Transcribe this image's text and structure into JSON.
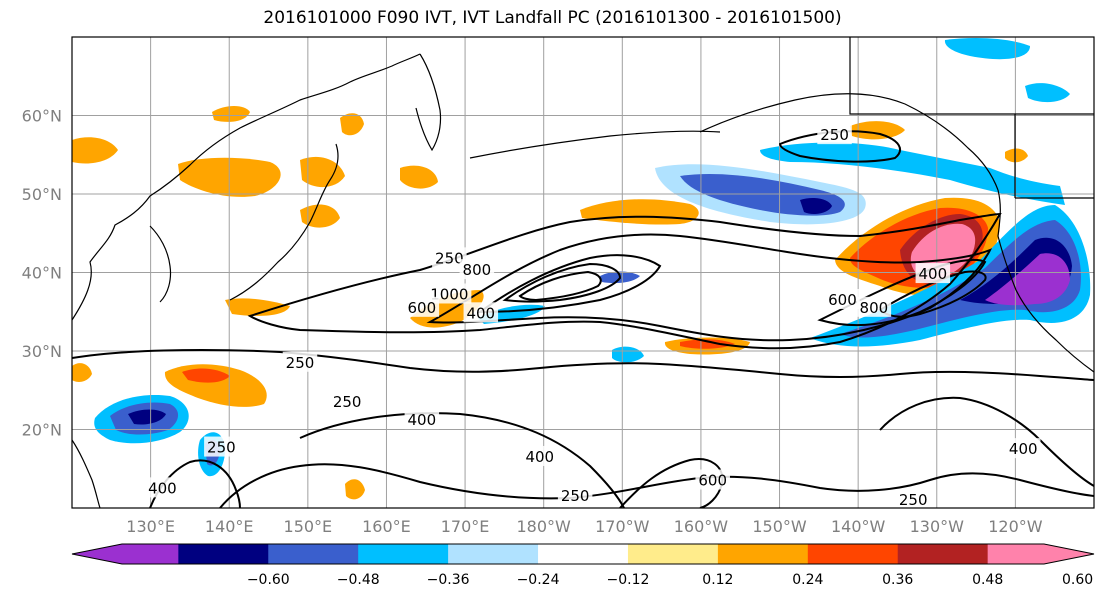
{
  "title": "2016101000 F090 IVT, IVT Landfall PC (2016101300 - 2016101500)",
  "map": {
    "lat_labels": [
      "60°N",
      "50°N",
      "40°N",
      "30°N",
      "20°N"
    ],
    "lon_labels": [
      "130°E",
      "140°E",
      "150°E",
      "160°E",
      "170°E",
      "180°W",
      "170°W",
      "160°W",
      "150°W",
      "140°W",
      "130°W",
      "120°W"
    ],
    "contour_labels": [
      {
        "text": "250",
        "lon": 168,
        "lat": 41.8
      },
      {
        "text": "800",
        "lon": 171.5,
        "lat": 40.3
      },
      {
        "text": "1000",
        "lon": 168,
        "lat": 37.2
      },
      {
        "text": "600",
        "lon": 164.5,
        "lat": 35.5
      },
      {
        "text": "400",
        "lon": 172,
        "lat": 34.8
      },
      {
        "text": "600",
        "lon": -142,
        "lat": 36.5
      },
      {
        "text": "800",
        "lon": -138,
        "lat": 35.5
      },
      {
        "text": "400",
        "lon": -130.5,
        "lat": 39.8
      },
      {
        "text": "250",
        "lon": -143,
        "lat": 57.5
      },
      {
        "text": "250",
        "lon": 149,
        "lat": 28.5
      },
      {
        "text": "250",
        "lon": 155,
        "lat": 23.5
      },
      {
        "text": "400",
        "lon": 164.5,
        "lat": 21.2
      },
      {
        "text": "250",
        "lon": 139,
        "lat": 17.7
      },
      {
        "text": "400",
        "lon": 131.5,
        "lat": 12.5
      },
      {
        "text": "400",
        "lon": 179.5,
        "lat": 16.5
      },
      {
        "text": "600",
        "lon": -158.5,
        "lat": 13.5
      },
      {
        "text": "250",
        "lon": -176,
        "lat": 11.5
      },
      {
        "text": "250",
        "lon": -133,
        "lat": 11
      },
      {
        "text": "400",
        "lon": -119,
        "lat": 17.5
      }
    ]
  },
  "colorbar": {
    "tick_labels": [
      "−0.60",
      "−0.48",
      "−0.36",
      "−0.24",
      "−0.12",
      "0.12",
      "0.24",
      "0.36",
      "0.48",
      "0.60"
    ],
    "colors": [
      "#9b30d0",
      "#000080",
      "#3a5fcd",
      "#00bfff",
      "#b0e2ff",
      "#ffffff",
      "#ffec8b",
      "#ffa500",
      "#ff4500",
      "#b22222",
      "#ff82ab"
    ]
  },
  "pc_colors": {
    "neg_strong": "#9b30d0",
    "neg_navy": "#000080",
    "neg_blue": "#3a5fcd",
    "neg_sky": "#00bfff",
    "neg_light": "#b0e2ff",
    "pos_light": "#ffec8b",
    "pos_orange": "#ffa500",
    "pos_red": "#ff4500",
    "pos_dark": "#b22222",
    "pos_pink": "#ff82ab"
  }
}
